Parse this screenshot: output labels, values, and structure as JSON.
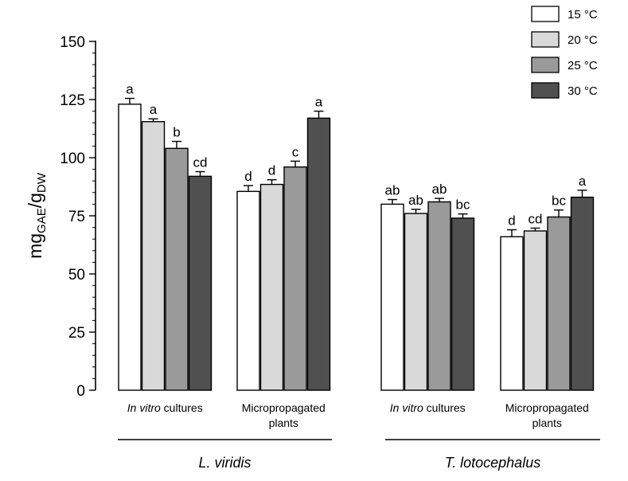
{
  "chart_data": {
    "type": "bar",
    "ylabel": "mg",
    "ylabel_sub1": "GAE",
    "ylabel_mid": "/g",
    "ylabel_sub2": "DW",
    "ylim": [
      0,
      150
    ],
    "yticks": [
      0,
      25,
      50,
      75,
      100,
      125,
      150
    ],
    "groups": [
      {
        "name": "L. viridis",
        "categories": [
          {
            "label_parts": [
              {
                "text": "In vitro",
                "italic": true
              },
              {
                "text": " cultures",
                "italic": false
              }
            ],
            "label_line2": ""
          },
          {
            "label_parts": [
              {
                "text": "Micropropagated",
                "italic": false
              }
            ],
            "label_line2": "plants"
          }
        ]
      },
      {
        "name": "T. lotocephalus",
        "categories": [
          {
            "label_parts": [
              {
                "text": "In vitro",
                "italic": true
              },
              {
                "text": " cultures",
                "italic": false
              }
            ],
            "label_line2": ""
          },
          {
            "label_parts": [
              {
                "text": "Micropropagated",
                "italic": false
              }
            ],
            "label_line2": "plants"
          }
        ]
      }
    ],
    "series": [
      {
        "name": "15 °C",
        "color": "#ffffff",
        "values": [
          123,
          85.5,
          80,
          66
        ],
        "errors": [
          2.5,
          2.5,
          2,
          3
        ],
        "letters": [
          "a",
          "d",
          "ab",
          "d"
        ]
      },
      {
        "name": "20 °C",
        "color": "#d9d9d9",
        "values": [
          115.5,
          88.5,
          76,
          68.5
        ],
        "errors": [
          1.2,
          2,
          1.8,
          1.2
        ],
        "letters": [
          "a",
          "d",
          "ab",
          "cd"
        ]
      },
      {
        "name": "25 °C",
        "color": "#9a9a9a",
        "values": [
          104,
          96,
          81,
          74.5
        ],
        "errors": [
          3,
          2.5,
          1.5,
          3
        ],
        "letters": [
          "b",
          "c",
          "ab",
          "bc"
        ]
      },
      {
        "name": "30 °C",
        "color": "#505050",
        "values": [
          92,
          117,
          74,
          83
        ],
        "errors": [
          2,
          3,
          1.8,
          3
        ],
        "letters": [
          "cd",
          "a",
          "bc",
          "a"
        ]
      }
    ],
    "legend_position": "top-right"
  }
}
